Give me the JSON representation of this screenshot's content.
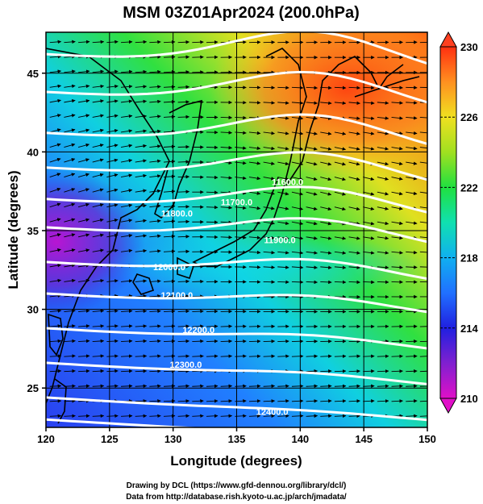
{
  "title": "MSM 03Z01Apr2024 (200.0hPa)",
  "xlabel": "Longitude (degrees)",
  "ylabel": "Latitude  (degrees)",
  "credit_line1": "Drawing by DCL (https://www.gfd-dennou.org/library/dcl/)",
  "credit_line2": "Data from http://database.rish.kyoto-u.ac.jp/arch/jmadata/",
  "map": {
    "lon_range": [
      120,
      150
    ],
    "lat_range": [
      22.5,
      47.6
    ],
    "lon_ticks": [
      "120",
      "125",
      "130",
      "135",
      "140",
      "145",
      "150"
    ],
    "lat_ticks": [
      "25",
      "30",
      "35",
      "40",
      "45"
    ],
    "field": "temperature",
    "colorbar": {
      "min": 210,
      "max": 230,
      "ticks": [
        "210",
        "214",
        "218",
        "222",
        "226",
        "230"
      ],
      "colors": [
        "#e010c8",
        "#8020d0",
        "#2020e0",
        "#2070ff",
        "#10c0f0",
        "#10e0b0",
        "#20e040",
        "#a0e020",
        "#f0e020",
        "#ff9020",
        "#ff4010"
      ]
    },
    "contours": [
      {
        "label": "11600.0",
        "value": 11600,
        "lon": 139.0,
        "lat": 37.9
      },
      {
        "label": "11700.0",
        "value": 11700,
        "lon": 135.0,
        "lat": 36.6
      },
      {
        "label": "11800.0",
        "value": 11800,
        "lon": 130.3,
        "lat": 35.9
      },
      {
        "label": "11900.0",
        "value": 11900,
        "lon": 138.4,
        "lat": 34.2
      },
      {
        "label": "12000.0",
        "value": 12000,
        "lon": 129.7,
        "lat": 32.5
      },
      {
        "label": "12100.0",
        "value": 12100,
        "lon": 130.3,
        "lat": 30.7
      },
      {
        "label": "12200.0",
        "value": 12200,
        "lon": 132.0,
        "lat": 28.5
      },
      {
        "label": "12300.0",
        "value": 12300,
        "lon": 131.0,
        "lat": 26.3
      },
      {
        "label": "12400.0",
        "value": 12400,
        "lon": 137.8,
        "lat": 23.3
      }
    ]
  }
}
